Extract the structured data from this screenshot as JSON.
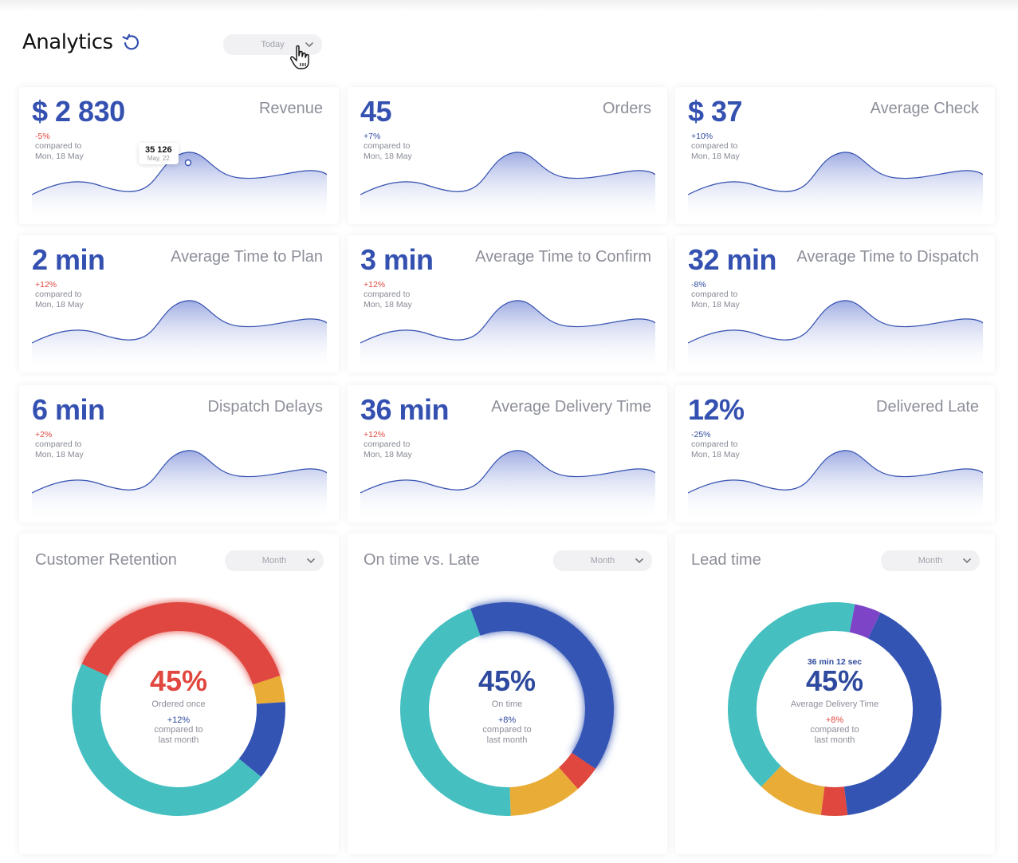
{
  "header": {
    "title": "Analytics",
    "range_select": "Today",
    "icons": {
      "refresh": "refresh-icon",
      "chevron": "chevron-down-icon",
      "cursor": "hand-pointer-icon"
    }
  },
  "colors": {
    "primary": "#3450b0",
    "negative": "#e0473f",
    "teal": "#45bfc0",
    "yellow": "#e9ad37",
    "red": "#e0473f",
    "blue": "#3454b4",
    "purple": "#7d44c8"
  },
  "metrics": [
    {
      "value": "$ 2 830",
      "label": "Revenue",
      "delta": "-5%",
      "compare": "compared to",
      "date": "Mon, 18 May",
      "tooltip": {
        "value": "35 126",
        "date": "May, 22"
      }
    },
    {
      "value": "45",
      "label": "Orders",
      "delta": "+7%",
      "compare": "compared to",
      "date": "Mon, 18 May"
    },
    {
      "value": "$ 37",
      "label": "Average Check",
      "delta": "+10%",
      "compare": "compared to",
      "date": "Mon, 18 May"
    },
    {
      "value": "2 min",
      "label": "Average Time to Plan",
      "delta": "+12%",
      "compare": "compared to",
      "date": "Mon, 18 May"
    },
    {
      "value": "3 min",
      "label": "Average Time to Confirm",
      "delta": "+12%",
      "compare": "compared to",
      "date": "Mon, 18 May"
    },
    {
      "value": "32 min",
      "label": "Average Time to Dispatch",
      "delta": "-8%",
      "compare": "compared to",
      "date": "Mon, 18 May"
    },
    {
      "value": "6 min",
      "label": "Dispatch Delays",
      "delta": "+2%",
      "compare": "compared to",
      "date": "Mon, 18 May"
    },
    {
      "value": "36 min",
      "label": "Average Delivery Time",
      "delta": "+12%",
      "compare": "compared to",
      "date": "Mon, 18 May"
    },
    {
      "value": "12%",
      "label": "Delivered Late",
      "delta": "-25%",
      "compare": "compared to",
      "date": "Mon, 18 May"
    }
  ],
  "donuts": [
    {
      "title": "Customer Retention",
      "select": "Month",
      "percent": "45%",
      "caption": "Ordered once",
      "delta": "+12%",
      "compare": "compared to",
      "period": "last month"
    },
    {
      "title": "On time vs. Late",
      "select": "Month",
      "percent": "45%",
      "caption": "On time",
      "delta": "+8%",
      "compare": "compared to",
      "period": "last month"
    },
    {
      "title": "Lead time",
      "select": "Month",
      "top": "36 min 12 sec",
      "percent": "45%",
      "caption": "Average Delivery Time",
      "delta": "+8%",
      "compare": "compared to",
      "period": "last month"
    }
  ],
  "chart_data": [
    {
      "type": "pie",
      "name": "Customer Retention",
      "slices": [
        {
          "color": "#e0473f",
          "value": 38
        },
        {
          "color": "#e9ad37",
          "value": 4
        },
        {
          "color": "#3454b4",
          "value": 12
        },
        {
          "color": "#45bfc0",
          "value": 46
        }
      ]
    },
    {
      "type": "pie",
      "name": "On time vs. Late",
      "slices": [
        {
          "color": "#3454b4",
          "value": 40
        },
        {
          "color": "#e0473f",
          "value": 4
        },
        {
          "color": "#e9ad37",
          "value": 11
        },
        {
          "color": "#45bfc0",
          "value": 45
        }
      ]
    },
    {
      "type": "pie",
      "name": "Lead time",
      "slices": [
        {
          "color": "#e0473f",
          "value": 4
        },
        {
          "color": "#e9ad37",
          "value": 10
        },
        {
          "color": "#45bfc0",
          "value": 41
        },
        {
          "color": "#7d44c8",
          "value": 4
        },
        {
          "color": "#3454b4",
          "value": 41
        }
      ]
    }
  ]
}
